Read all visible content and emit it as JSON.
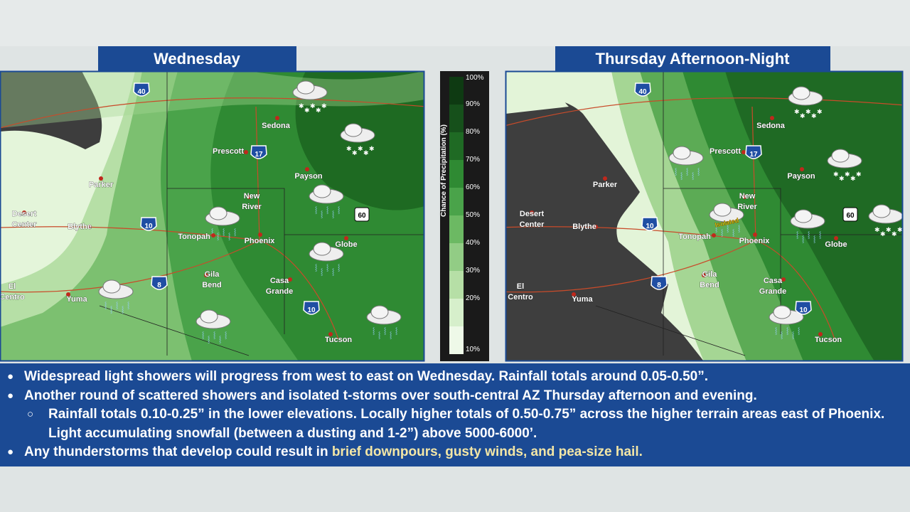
{
  "panels": [
    {
      "title": "Wednesday",
      "cities": [
        [
          "Sedona"
        ],
        [
          "Prescott"
        ],
        [
          "Payson"
        ],
        [
          "Parker"
        ],
        [
          "New",
          "River"
        ],
        [
          "Desert",
          "Center"
        ],
        [
          "Blythe"
        ],
        [
          "Tonopah"
        ],
        [
          "Phoenix"
        ],
        [
          "Globe"
        ],
        [
          "Gila",
          "Bend"
        ],
        [
          "Casa",
          "Grande"
        ],
        [
          "El",
          "Centro"
        ],
        [
          "Yuma"
        ],
        [
          "Tucson"
        ]
      ],
      "highways": [
        "40",
        "17",
        "10",
        "8",
        "10",
        "60"
      ]
    },
    {
      "title": "Thursday Afternoon-Night",
      "cities": [
        [
          "Sedona"
        ],
        [
          "Prescott"
        ],
        [
          "Payson"
        ],
        [
          "Parker"
        ],
        [
          "New",
          "River"
        ],
        [
          "Desert",
          "Center"
        ],
        [
          "Blythe"
        ],
        [
          "Tonopah"
        ],
        [
          "Phoenix"
        ],
        [
          "Globe"
        ],
        [
          "Gila",
          "Bend"
        ],
        [
          "Casa",
          "Grande"
        ],
        [
          "El",
          "Centro"
        ],
        [
          "Yuma"
        ],
        [
          "Tucson"
        ]
      ],
      "highways": [
        "40",
        "17",
        "10",
        "8",
        "10",
        "60"
      ],
      "annotation": "Isolated"
    }
  ],
  "legend": {
    "title": "Chance of Precipitation (%)",
    "ticks": [
      "100%",
      "90%",
      "80%",
      "70%",
      "60%",
      "50%",
      "40%",
      "30%",
      "20%",
      "10%"
    ]
  },
  "bullets": [
    {
      "text": "Widespread light showers will progress from west to east on Wednesday. Rainfall totals around 0.05-0.50”."
    },
    {
      "text": "Another round of scattered showers and isolated t-storms over south-central AZ Thursday afternoon and evening.",
      "sub": [
        "Rainfall totals 0.10-0.25” in the lower elevations. Locally higher totals of 0.50-0.75” across the higher terrain areas east of Phoenix. Light accumulating snowfall (between a dusting and 1-2”) above 5000-6000’."
      ]
    },
    {
      "text": "Any thunderstorms that develop could result in ",
      "highlight": "brief downpours, gusty winds, and pea-size hail."
    }
  ]
}
